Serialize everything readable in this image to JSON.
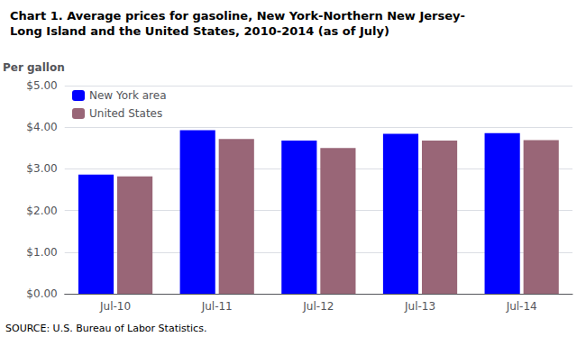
{
  "chart_data": {
    "type": "bar",
    "title": "Chart 1. Average prices for gasoline, New York-Northern New Jersey-",
    "subtitle": "Long Island and the United States, 2010-2014 (as of July)",
    "ylabel": "Per gallon",
    "source": "SOURCE: U.S. Bureau of Labor Statistics.",
    "categories": [
      "Jul-10",
      "Jul-11",
      "Jul-12",
      "Jul-13",
      "Jul-14"
    ],
    "series": [
      {
        "name": "New York area",
        "color": "#0000FF",
        "values": [
          2.86,
          3.93,
          3.68,
          3.84,
          3.86
        ]
      },
      {
        "name": "United States",
        "color": "#996677",
        "values": [
          2.82,
          3.72,
          3.5,
          3.68,
          3.69
        ]
      }
    ],
    "ylim": [
      0,
      5.0
    ],
    "yticks": [
      {
        "value": 0.0,
        "label": "$0.00"
      },
      {
        "value": 1.0,
        "label": "$1.00"
      },
      {
        "value": 2.0,
        "label": "$2.00"
      },
      {
        "value": 3.0,
        "label": "$3.00"
      },
      {
        "value": 4.0,
        "label": "$4.00"
      },
      {
        "value": 5.0,
        "label": "$5.00"
      }
    ],
    "grid": true,
    "legend": "upper left"
  }
}
